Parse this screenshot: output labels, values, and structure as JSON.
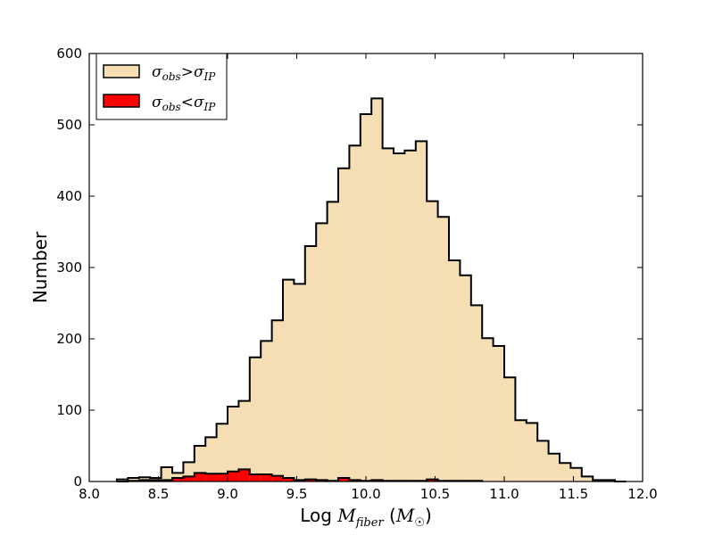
{
  "chart_data": {
    "type": "histogram",
    "xlabel": {
      "prefix": "Log ",
      "main": "M",
      "main_sub": "fiber",
      "unit_open": " (",
      "unit": "M",
      "unit_sub": "☉",
      "unit_close": ")"
    },
    "ylabel": "Number",
    "xlim": [
      8.0,
      12.0
    ],
    "ylim": [
      0,
      600
    ],
    "xticks": [
      8.0,
      8.5,
      9.0,
      9.5,
      10.0,
      10.5,
      11.0,
      11.5,
      12.0
    ],
    "xtick_labels": [
      "8.0",
      "8.5",
      "9.0",
      "9.5",
      "10.0",
      "10.5",
      "11.0",
      "11.5",
      "12.0"
    ],
    "yticks": [
      0,
      100,
      200,
      300,
      400,
      500,
      600
    ],
    "ytick_labels": [
      "0",
      "100",
      "200",
      "300",
      "400",
      "500",
      "600"
    ],
    "legend_position": "top-left",
    "series": [
      {
        "label": {
          "a": "σ",
          "a_sub": "obs",
          "op": ">",
          "b": "σ",
          "b_sub": "IP"
        },
        "color": "#f5deb3",
        "edges": [
          8.2,
          8.28,
          8.36,
          8.44,
          8.52,
          8.6,
          8.68,
          8.76,
          8.84,
          8.92,
          9.0,
          9.08,
          9.16,
          9.24,
          9.32,
          9.4,
          9.48,
          9.56,
          9.64,
          9.72,
          9.8,
          9.88,
          9.96,
          10.04,
          10.12,
          10.2,
          10.28,
          10.36,
          10.44,
          10.52,
          10.6,
          10.68,
          10.76,
          10.84,
          10.92,
          11.0,
          11.08,
          11.16,
          11.24,
          11.32,
          11.4,
          11.48,
          11.56,
          11.64,
          11.72,
          11.8,
          11.88
        ],
        "counts": [
          3,
          5,
          6,
          5,
          20,
          12,
          27,
          50,
          62,
          81,
          105,
          113,
          174,
          197,
          226,
          283,
          277,
          330,
          362,
          392,
          439,
          471,
          515,
          537,
          467,
          460,
          464,
          477,
          393,
          371,
          310,
          289,
          247,
          201,
          190,
          146,
          86,
          82,
          57,
          39,
          26,
          19,
          7,
          2,
          2,
          0
        ]
      },
      {
        "label": {
          "a": "σ",
          "a_sub": "obs",
          "op": "<",
          "b": "σ",
          "b_sub": "IP"
        },
        "color": "#ff0000",
        "edges": [
          8.2,
          8.28,
          8.36,
          8.44,
          8.52,
          8.6,
          8.68,
          8.76,
          8.84,
          8.92,
          9.0,
          9.08,
          9.16,
          9.24,
          9.32,
          9.4,
          9.48,
          9.56,
          9.64,
          9.72,
          9.8,
          9.88,
          9.96,
          10.04,
          10.12,
          10.2,
          10.28,
          10.36,
          10.44,
          10.52,
          10.6,
          10.68,
          10.76,
          10.84
        ],
        "counts": [
          0,
          1,
          2,
          2,
          2,
          5,
          7,
          12,
          11,
          11,
          14,
          17,
          10,
          10,
          8,
          5,
          2,
          3,
          2,
          1,
          5,
          2,
          1,
          2,
          1,
          1,
          1,
          1,
          3,
          1,
          1,
          1,
          1
        ]
      }
    ]
  }
}
